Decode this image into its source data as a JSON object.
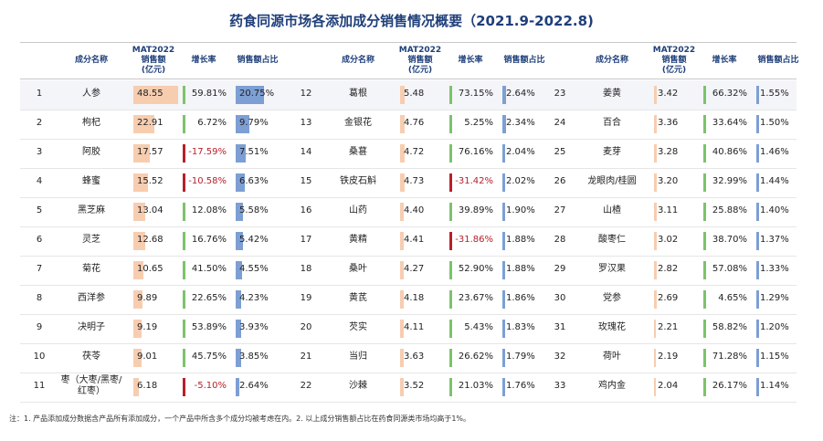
{
  "header": {
    "title": "药食同源市场各添加成分销售情况概要（2021.9-2022.8)"
  },
  "table": {
    "columns": [
      "成分名称",
      [
        "MAT2022",
        "销售额",
        "(亿元)"
      ],
      "增长率",
      "销售额占比"
    ],
    "rows": [
      [
        "1",
        "人参",
        "48.55",
        "59.81%",
        "20.75%"
      ],
      [
        "2",
        "枸杞",
        "22.91",
        "6.72%",
        "9.79%"
      ],
      [
        "3",
        "阿胶",
        "17.57",
        "-17.59%",
        "7.51%"
      ],
      [
        "4",
        "蜂蜜",
        "15.52",
        "-10.58%",
        "6.63%"
      ],
      [
        "5",
        "黑芝麻",
        "13.04",
        "12.08%",
        "5.58%"
      ],
      [
        "6",
        "灵芝",
        "12.68",
        "16.76%",
        "5.42%"
      ],
      [
        "7",
        "菊花",
        "10.65",
        "41.50%",
        "4.55%"
      ],
      [
        "8",
        "西洋参",
        "9.89",
        "22.65%",
        "4.23%"
      ],
      [
        "9",
        "决明子",
        "9.19",
        "53.89%",
        "3.93%"
      ],
      [
        "10",
        "茯苓",
        "9.01",
        "45.75%",
        "3.85%"
      ],
      [
        "11",
        "枣（大枣/黑枣/红枣）",
        "6.18",
        "-5.10%",
        "2.64%"
      ],
      [
        "12",
        "葛根",
        "5.48",
        "73.15%",
        "2.64%"
      ],
      [
        "13",
        "金银花",
        "4.76",
        "5.25%",
        "2.34%"
      ],
      [
        "14",
        "桑葚",
        "4.72",
        "76.16%",
        "2.04%"
      ],
      [
        "15",
        "铁皮石斛",
        "4.73",
        "-31.42%",
        "2.02%"
      ],
      [
        "16",
        "山药",
        "4.40",
        "39.89%",
        "1.90%"
      ],
      [
        "17",
        "黄精",
        "4.41",
        "-31.86%",
        "1.88%"
      ],
      [
        "18",
        "桑叶",
        "4.27",
        "52.90%",
        "1.88%"
      ],
      [
        "19",
        "黄芪",
        "4.18",
        "23.67%",
        "1.86%"
      ],
      [
        "20",
        "芡实",
        "4.11",
        "5.43%",
        "1.83%"
      ],
      [
        "21",
        "当归",
        "3.63",
        "26.62%",
        "1.79%"
      ],
      [
        "22",
        "沙棘",
        "3.52",
        "21.03%",
        "1.76%"
      ],
      [
        "23",
        "姜黄",
        "3.42",
        "66.32%",
        "1.55%"
      ],
      [
        "24",
        "百合",
        "3.36",
        "33.64%",
        "1.50%"
      ],
      [
        "25",
        "麦芽",
        "3.28",
        "40.86%",
        "1.46%"
      ],
      [
        "26",
        "龙眼肉/桂圆",
        "3.20",
        "32.99%",
        "1.44%"
      ],
      [
        "27",
        "山楂",
        "3.11",
        "25.88%",
        "1.40%"
      ],
      [
        "28",
        "酸枣仁",
        "3.02",
        "38.70%",
        "1.37%"
      ],
      [
        "29",
        "罗汉果",
        "2.82",
        "57.08%",
        "1.33%"
      ],
      [
        "30",
        "党参",
        "2.69",
        "4.65%",
        "1.29%"
      ],
      [
        "31",
        "玫瑰花",
        "2.21",
        "58.82%",
        "1.20%"
      ],
      [
        "32",
        "荷叶",
        "2.19",
        "71.28%",
        "1.15%"
      ],
      [
        "33",
        "鸡内金",
        "2.04",
        "26.17%",
        "1.14%"
      ]
    ]
  },
  "footnote": "注：1. 产品添加成分数据含产品所有添加成分，一个产品中所含多个成分均被考虑在内。2. 以上成分销售额占比在药食同源类市场均高于1%。"
}
